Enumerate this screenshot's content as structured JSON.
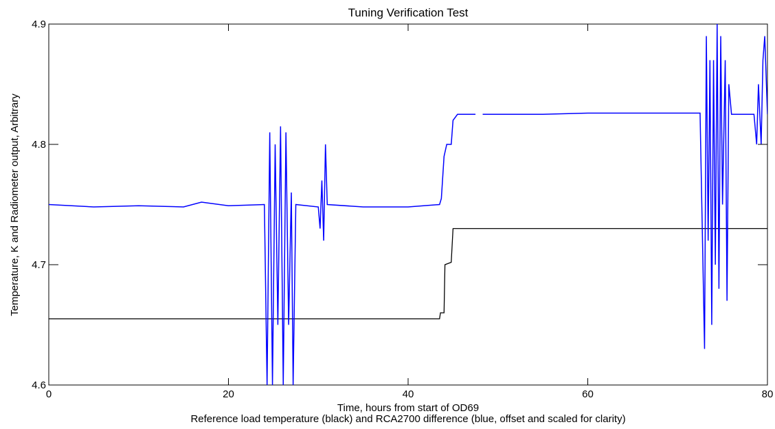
{
  "chart_data": {
    "type": "line",
    "title": "Tuning Verification Test",
    "xlabel": "Time, hours from start of OD69",
    "subtitle": "Reference load temperature (black) and RCA2700 difference (blue, offset and scaled for clarity)",
    "ylabel": "Temperature, K and Radiometer output, Arbitrary",
    "xlim": [
      0,
      80
    ],
    "ylim": [
      4.6,
      4.9
    ],
    "xticks": [
      0,
      20,
      40,
      60,
      80
    ],
    "yticks": [
      4.6,
      4.7,
      4.8,
      4.9
    ],
    "series": [
      {
        "color": "#000000",
        "x": [
          0,
          10,
          20,
          30,
          43.5,
          43.6,
          44,
          44.1,
          44.8,
          45,
          50,
          60,
          70,
          80
        ],
        "values": [
          4.655,
          4.655,
          4.655,
          4.655,
          4.655,
          4.66,
          4.66,
          4.7,
          4.702,
          4.73,
          4.73,
          4.73,
          4.73,
          4.73
        ]
      },
      {
        "color": "#0000ff",
        "x": [
          0,
          5,
          10,
          15,
          17,
          20,
          24,
          24.3,
          24.6,
          24.9,
          25.2,
          25.5,
          25.8,
          26.1,
          26.4,
          26.7,
          27,
          27.2,
          27.5,
          30,
          30.2,
          30.4,
          30.6,
          30.8,
          31,
          35,
          40,
          43.5,
          43.7,
          44,
          44.3,
          44.8,
          45,
          45.5,
          47.5,
          47.8,
          48.3,
          55,
          60,
          65,
          72.5,
          73,
          73.2,
          73.4,
          73.6,
          73.8,
          74,
          74.2,
          74.4,
          74.6,
          74.8,
          75,
          75.3,
          75.5,
          75.7,
          76,
          78.5,
          78.8,
          79,
          79.3,
          79.5,
          79.7,
          80
        ],
        "values": [
          4.75,
          4.748,
          4.749,
          4.748,
          4.752,
          4.749,
          4.75,
          4.6,
          4.81,
          4.6,
          4.8,
          4.65,
          4.815,
          4.6,
          4.81,
          4.65,
          4.76,
          4.6,
          4.75,
          4.748,
          4.73,
          4.77,
          4.72,
          4.8,
          4.75,
          4.748,
          4.748,
          4.75,
          4.755,
          4.79,
          4.8,
          4.8,
          4.82,
          4.825,
          4.825,
          null,
          4.825,
          4.825,
          4.826,
          4.826,
          4.826,
          4.63,
          4.89,
          4.72,
          4.87,
          4.65,
          4.87,
          4.7,
          4.9,
          4.68,
          4.89,
          4.75,
          4.87,
          4.67,
          4.85,
          4.825,
          4.825,
          4.8,
          4.85,
          4.8,
          4.87,
          4.89,
          4.825
        ]
      }
    ]
  }
}
